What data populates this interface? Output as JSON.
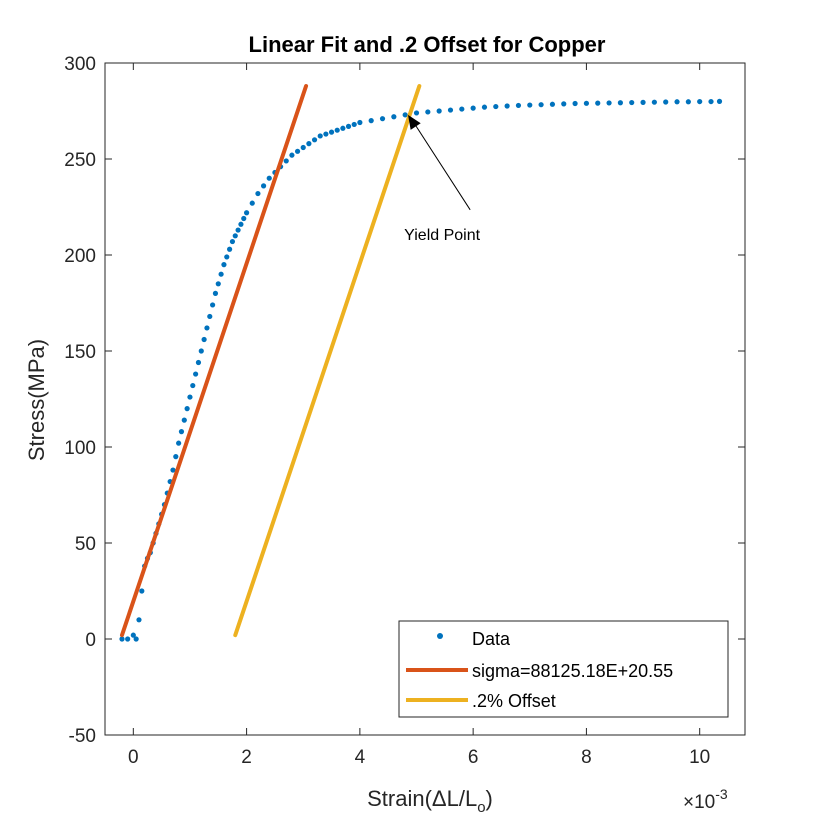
{
  "chart_data": {
    "type": "scatter",
    "title": "Linear Fit and .2 Offset for Copper",
    "xlabel_main": "Strain(ΔL/L",
    "xlabel_sub": "o",
    "xlabel_close": ")",
    "ylabel": "Stress(MPa)",
    "x_exponent_base": "×10",
    "x_exponent_power": "-3",
    "xlim": [
      -0.5,
      10.8
    ],
    "ylim": [
      -50,
      300
    ],
    "xticks": [
      0,
      2,
      4,
      6,
      8,
      10
    ],
    "yticks": [
      -50,
      0,
      50,
      100,
      150,
      200,
      250,
      300
    ],
    "colors": {
      "data": "#0072BD",
      "fit": "#D95319",
      "offset": "#EDB120",
      "axis": "#262626"
    },
    "series": [
      {
        "name": "Data",
        "kind": "points",
        "x": [
          -0.2,
          -0.1,
          0.0,
          0.05,
          0.1,
          0.15,
          0.2,
          0.25,
          0.3,
          0.35,
          0.4,
          0.45,
          0.5,
          0.55,
          0.6,
          0.65,
          0.7,
          0.75,
          0.8,
          0.85,
          0.9,
          0.95,
          1.0,
          1.05,
          1.1,
          1.15,
          1.2,
          1.25,
          1.3,
          1.35,
          1.4,
          1.45,
          1.5,
          1.55,
          1.6,
          1.65,
          1.7,
          1.75,
          1.8,
          1.85,
          1.9,
          1.95,
          2.0,
          2.1,
          2.2,
          2.3,
          2.4,
          2.5,
          2.6,
          2.7,
          2.8,
          2.9,
          3.0,
          3.1,
          3.2,
          3.3,
          3.4,
          3.5,
          3.6,
          3.7,
          3.8,
          3.9,
          4.0,
          4.2,
          4.4,
          4.6,
          4.8,
          5.0,
          5.2,
          5.4,
          5.6,
          5.8,
          6.0,
          6.2,
          6.4,
          6.6,
          6.8,
          7.0,
          7.2,
          7.4,
          7.6,
          7.8,
          8.0,
          8.2,
          8.4,
          8.6,
          8.8,
          9.0,
          9.2,
          9.4,
          9.6,
          9.8,
          10.0,
          10.2,
          10.35
        ],
        "y": [
          0,
          0,
          2,
          0,
          10,
          25,
          38,
          42,
          45,
          50,
          55,
          60,
          65,
          70,
          76,
          82,
          88,
          95,
          102,
          108,
          114,
          120,
          126,
          132,
          138,
          144,
          150,
          156,
          162,
          168,
          174,
          180,
          185,
          190,
          195,
          199,
          203,
          207,
          210,
          213,
          216,
          219,
          222,
          227,
          232,
          236,
          240,
          243,
          246,
          249,
          252,
          254,
          256,
          258,
          260,
          262,
          263,
          264,
          265,
          266,
          267,
          268,
          269,
          270,
          271,
          272,
          273,
          274,
          274.5,
          275,
          275.5,
          276,
          276.5,
          277,
          277.3,
          277.6,
          277.9,
          278.1,
          278.3,
          278.5,
          278.7,
          278.9,
          279,
          279.1,
          279.2,
          279.3,
          279.4,
          279.5,
          279.6,
          279.7,
          279.8,
          279.8,
          279.9,
          279.9,
          280
        ]
      },
      {
        "name": "sigma=88125.18E+20.55",
        "kind": "line",
        "x": [
          -0.2,
          3.05
        ],
        "y": [
          2,
          288
        ]
      },
      {
        "name": ".2% Offset",
        "kind": "line",
        "x": [
          1.8,
          5.05
        ],
        "y": [
          2,
          288
        ]
      }
    ],
    "legend": {
      "placement": "bottom-right",
      "entries": [
        "Data",
        "sigma=88125.18E+20.55",
        ".2% Offset"
      ]
    },
    "annotations": [
      {
        "text": "Yield Point",
        "arrow_to_x": 4.85,
        "arrow_to_y": 273,
        "text_x": 5.1,
        "text_y": 210
      }
    ]
  }
}
